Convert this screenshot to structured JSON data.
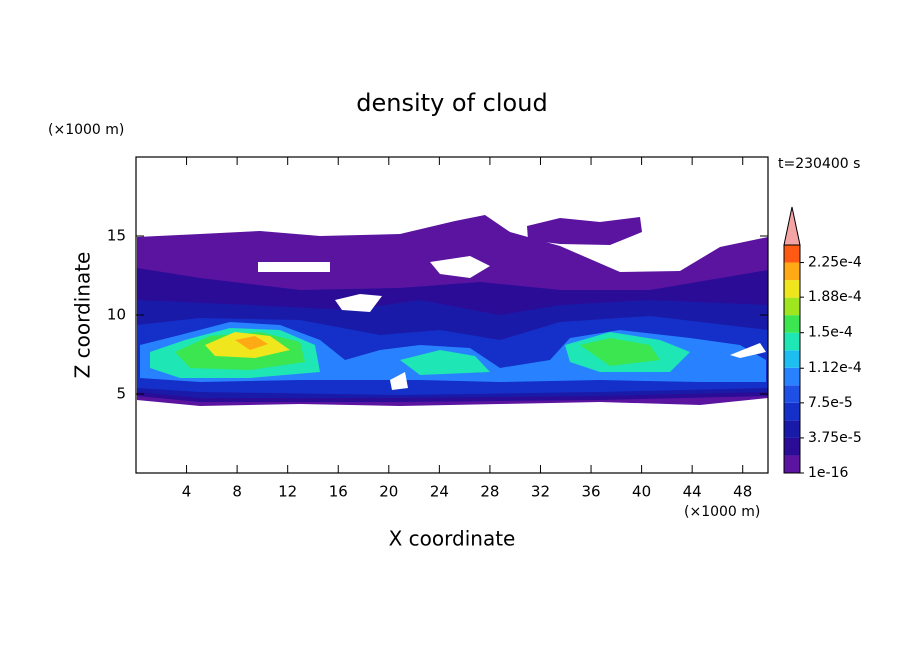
{
  "chart_data": {
    "type": "contour",
    "title": "density of cloud",
    "x_label": "X coordinate",
    "y_label": "Z coordinate",
    "x_unit": "(×1000 m)",
    "y_unit": "(×1000 m)",
    "annotation": "t=230400 s",
    "xlim": [
      0,
      50
    ],
    "xticks": [
      4,
      8,
      12,
      16,
      20,
      24,
      28,
      32,
      36,
      40,
      44,
      48
    ],
    "ylim": [
      0,
      20
    ],
    "yticks": [
      5,
      10,
      15
    ],
    "colorbar": {
      "levels": [
        1e-16,
        1.875e-05,
        3.75e-05,
        5.625e-05,
        7.5e-05,
        9.375e-05,
        0.0001125,
        0.00013125,
        0.00015,
        0.00016875,
        0.0001875,
        0.00020625,
        0.000225,
        0.00024375
      ],
      "colors": [
        "#5a14a0",
        "#2a0c96",
        "#1a1aa8",
        "#1430c8",
        "#1e50e6",
        "#2882ff",
        "#1ebef0",
        "#1ee6b4",
        "#3ce650",
        "#a0e61e",
        "#f0e61e",
        "#ffaa14",
        "#ff5a14"
      ],
      "extend_color": "#f4a4a4",
      "ticks": [
        {
          "value": 1e-16,
          "label": "1e-16"
        },
        {
          "value": 3.75e-05,
          "label": "3.75e-5"
        },
        {
          "value": 7.5e-05,
          "label": "7.5e-5"
        },
        {
          "value": 0.000112,
          "label": "1.12e-4"
        },
        {
          "value": 0.00015,
          "label": "1.5e-4"
        },
        {
          "value": 0.000188,
          "label": "1.88e-4"
        },
        {
          "value": 0.000225,
          "label": "2.25e-4"
        }
      ]
    }
  }
}
